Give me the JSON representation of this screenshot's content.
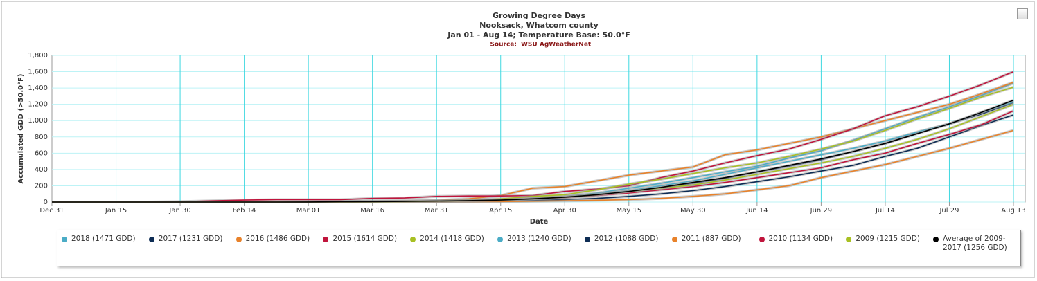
{
  "header": {
    "title": "Growing Degree Days",
    "subtitle": "Nooksack, Whatcom county",
    "period": "Jan 01 - Aug 14; Temperature Base: 50.0°F",
    "source_label": "Source:",
    "source": "WSU AgWeatherNet"
  },
  "chart_data": {
    "type": "line",
    "x_label": "Date",
    "y_label": "Accumulated GDD (>50.0°F)",
    "grid": true,
    "legend": "bottom",
    "x": [
      "Dec 31",
      null,
      "Jan 15",
      null,
      "Jan 30",
      null,
      "Feb 14",
      null,
      "Mar 01",
      null,
      "Mar 16",
      null,
      "Mar 31",
      null,
      "Apr 15",
      null,
      "Apr 30",
      null,
      "May 15",
      null,
      "May 30",
      null,
      "Jun 14",
      null,
      "Jun 29",
      null,
      "Jul 14",
      null,
      "Jul 29",
      null,
      "Aug 13"
    ],
    "ylim": [
      0,
      1800
    ],
    "yticks": [
      0,
      200,
      400,
      600,
      800,
      {
        "value": 1000,
        "label": "1,000"
      },
      {
        "value": 1200,
        "label": "1,200"
      },
      {
        "value": 1400,
        "label": "1,400"
      },
      {
        "value": 1600,
        "label": "1,600"
      },
      {
        "value": 1800,
        "label": "1,800"
      }
    ],
    "series": [
      {
        "name": "2018 (1471 GDD)",
        "color": "#4bacc6",
        "values": [
          0,
          0,
          0,
          0,
          0,
          0,
          0,
          0,
          0,
          2,
          5,
          8,
          12,
          20,
          30,
          45,
          70,
          110,
          170,
          230,
          300,
          370,
          440,
          540,
          630,
          760,
          900,
          1040,
          1170,
          1310,
          1460
        ]
      },
      {
        "name": "2017 (1231 GDD)",
        "color": "#0d2c54",
        "values": [
          0,
          0,
          0,
          0,
          0,
          0,
          0,
          0,
          0,
          0,
          2,
          4,
          8,
          15,
          25,
          40,
          60,
          90,
          130,
          170,
          230,
          290,
          370,
          440,
          520,
          620,
          720,
          850,
          960,
          1080,
          1220
        ]
      },
      {
        "name": "2016 (1486 GDD)",
        "color": "#e8822a",
        "values": [
          0,
          0,
          0,
          0,
          0,
          0,
          0,
          0,
          2,
          5,
          10,
          15,
          20,
          40,
          80,
          170,
          190,
          260,
          330,
          380,
          430,
          580,
          640,
          720,
          800,
          900,
          1000,
          1100,
          1200,
          1330,
          1470
        ]
      },
      {
        "name": "2015 (1614 GDD)",
        "color": "#c0143c",
        "values": [
          0,
          0,
          0,
          0,
          5,
          15,
          25,
          30,
          30,
          30,
          45,
          50,
          70,
          75,
          75,
          80,
          130,
          160,
          200,
          300,
          380,
          480,
          570,
          650,
          770,
          900,
          1060,
          1170,
          1300,
          1440,
          1600
        ]
      },
      {
        "name": "2014 (1418 GDD)",
        "color": "#a8c023",
        "values": [
          0,
          0,
          0,
          0,
          0,
          0,
          0,
          0,
          0,
          2,
          5,
          10,
          15,
          25,
          40,
          70,
          90,
          150,
          220,
          280,
          350,
          420,
          480,
          560,
          650,
          750,
          880,
          1020,
          1150,
          1290,
          1410
        ]
      },
      {
        "name": "2013 (1240 GDD)",
        "color": "#4bacc6",
        "values": [
          0,
          0,
          0,
          0,
          0,
          0,
          0,
          0,
          0,
          0,
          2,
          5,
          8,
          12,
          25,
          40,
          60,
          100,
          140,
          200,
          260,
          340,
          420,
          500,
          580,
          660,
          750,
          860,
          960,
          1100,
          1230
        ]
      },
      {
        "name": "2012 (1088 GDD)",
        "color": "#0d2c54",
        "values": [
          0,
          0,
          0,
          0,
          0,
          0,
          0,
          0,
          0,
          0,
          1,
          2,
          4,
          8,
          12,
          20,
          30,
          45,
          70,
          100,
          140,
          190,
          250,
          310,
          380,
          450,
          560,
          660,
          800,
          940,
          1070
        ]
      },
      {
        "name": "2011 (887 GDD)",
        "color": "#e8822a",
        "values": [
          0,
          0,
          0,
          0,
          0,
          0,
          0,
          0,
          0,
          0,
          0,
          0,
          2,
          4,
          6,
          10,
          15,
          22,
          30,
          45,
          70,
          100,
          150,
          200,
          300,
          380,
          460,
          560,
          660,
          770,
          880
        ]
      },
      {
        "name": "2010 (1134 GDD)",
        "color": "#c0143c",
        "values": [
          0,
          0,
          0,
          0,
          0,
          0,
          0,
          0,
          0,
          0,
          2,
          5,
          10,
          15,
          25,
          40,
          55,
          80,
          110,
          150,
          190,
          240,
          300,
          360,
          420,
          520,
          600,
          720,
          830,
          950,
          1120
        ]
      },
      {
        "name": "2009 (1215 GDD)",
        "color": "#a8c023",
        "values": [
          0,
          0,
          0,
          0,
          0,
          0,
          0,
          0,
          0,
          0,
          2,
          5,
          10,
          15,
          25,
          40,
          60,
          90,
          130,
          170,
          210,
          270,
          340,
          410,
          480,
          560,
          660,
          770,
          900,
          1050,
          1200
        ]
      },
      {
        "name": "Average of 2009-2017 (1256 GDD)",
        "color": "#000000",
        "values": [
          0,
          0,
          0,
          0,
          0,
          0,
          0,
          0,
          1,
          3,
          5,
          8,
          12,
          18,
          25,
          40,
          60,
          90,
          130,
          180,
          240,
          300,
          370,
          450,
          530,
          620,
          720,
          840,
          960,
          1100,
          1250
        ]
      }
    ]
  }
}
